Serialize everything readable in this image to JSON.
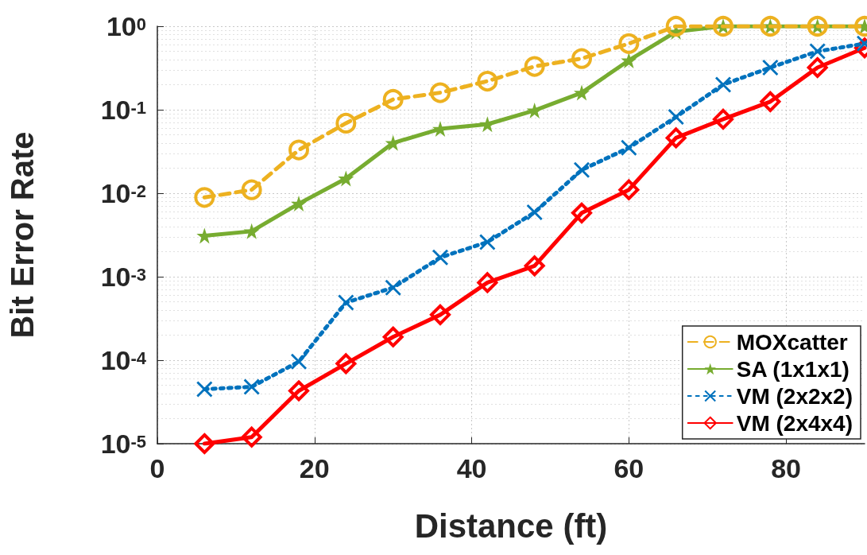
{
  "chart_data": {
    "type": "line",
    "xlabel": "Distance (ft)",
    "ylabel": "Bit Error Rate",
    "log": "y",
    "grid": true,
    "legend": "bottom right",
    "line_style": "solid",
    "x": [
      6,
      12,
      18,
      24,
      30,
      36,
      42,
      48,
      54,
      60,
      66,
      72,
      78,
      84,
      90
    ],
    "xlim": [
      0,
      90
    ],
    "xticks": [
      0,
      20,
      40,
      60,
      80
    ],
    "ylim": [
      1e-05,
      1
    ],
    "yticks": [
      {
        "value": 1e-05,
        "label": "10$^{-5}$"
      },
      {
        "value": 0.0001,
        "label": "10$^{-4}$"
      },
      {
        "value": 0.001,
        "label": "10$^{-3}$"
      },
      {
        "value": 0.01,
        "label": "10$^{-2}$"
      },
      {
        "value": 0.1,
        "label": "10$^{-1}$"
      },
      {
        "value": 1,
        "label": "10$^{0}$"
      }
    ],
    "series": [
      {
        "name": "MOXcatter",
        "color": "#edb120",
        "marker": "circle",
        "line_style": "dashed",
        "values": [
          0.0089,
          0.011,
          0.033,
          0.069,
          0.133,
          0.16,
          0.22,
          0.33,
          0.41,
          0.62,
          1,
          1,
          1,
          1,
          1
        ]
      },
      {
        "name": "SA (1x1x1)",
        "color": "#77ac30",
        "marker": "star",
        "values": [
          0.0031,
          0.0035,
          0.0075,
          0.015,
          0.04,
          0.059,
          0.067,
          0.098,
          0.16,
          0.39,
          0.86,
          1,
          1,
          1,
          1
        ]
      },
      {
        "name": "VM (2x2x2)",
        "color": "#0072bd",
        "marker": "cross",
        "line_style": "dotted",
        "values": [
          4.5e-05,
          4.8e-05,
          9.6e-05,
          0.00049,
          0.00074,
          0.0017,
          0.0026,
          0.0059,
          0.019,
          0.035,
          0.082,
          0.2,
          0.32,
          0.5,
          0.62
        ]
      },
      {
        "name": "VM (2x4x4)",
        "color": "#ff0000",
        "marker": "diamond",
        "values": [
          1e-05,
          1.2e-05,
          4.3e-05,
          9.1e-05,
          0.00019,
          0.00035,
          0.00085,
          0.00135,
          0.0058,
          0.011,
          0.046,
          0.077,
          0.125,
          0.32,
          0.55
        ]
      }
    ]
  }
}
